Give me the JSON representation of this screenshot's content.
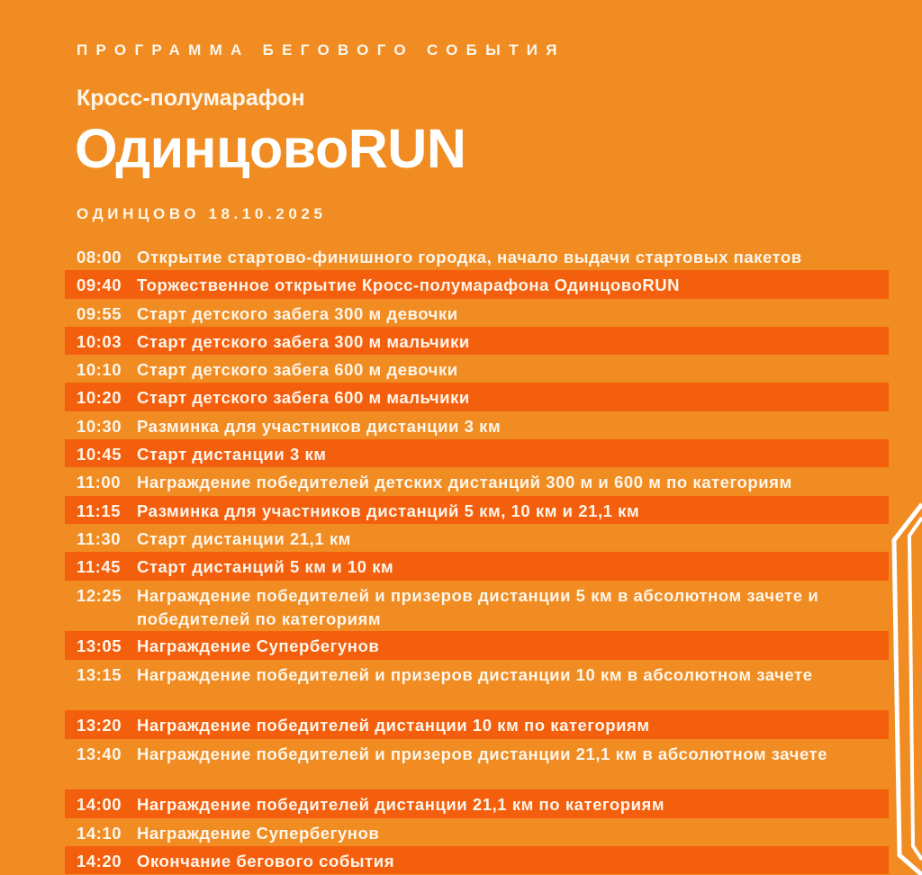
{
  "header": {
    "kicker": "ПРОГРАММА БЕГОВОГО СОБЫТИЯ",
    "subtitle": "Кросс-полумарафон",
    "title": "ОдинцовоRUN",
    "place_date": "ОДИНЦОВО 18.10.2025"
  },
  "colors": {
    "background": "#F08C22",
    "stripe": "#F45F0E",
    "text": "#FFF6EA"
  },
  "schedule": [
    {
      "time": "08:00",
      "text": "Открытие стартово-финишного городка, начало выдачи стартовых пакетов"
    },
    {
      "time": "09:40",
      "text": "Торжественное открытие Кросс-полумарафона ОдинцовоRUN"
    },
    {
      "time": "09:55",
      "text": "Старт детского забега 300 м девочки"
    },
    {
      "time": "10:03",
      "text": "Старт детского забега 300 м мальчики"
    },
    {
      "time": "10:10",
      "text": "Старт детского забега 600 м девочки"
    },
    {
      "time": "10:20",
      "text": "Старт детского забега 600 м мальчики"
    },
    {
      "time": "10:30",
      "text": "Разминка для участников дистанции 3 км"
    },
    {
      "time": "10:45",
      "text": "Старт дистанции 3 км"
    },
    {
      "time": "11:00",
      "text": "Награждение победителей детских дистанций 300 м и 600 м по категориям"
    },
    {
      "time": "11:15",
      "text": "Разминка для участников дистанций 5 км, 10 км и 21,1 км"
    },
    {
      "time": "11:30",
      "text": "Старт дистанции 21,1 км"
    },
    {
      "time": "11:45",
      "text": "Старт дистанций 5 км и 10 км"
    },
    {
      "time": "12:25",
      "text": "Награждение победителей и призеров дистанции 5 км в абсолютном зачете и победителей по категориям"
    },
    {
      "time": "13:05",
      "text": "Награждение Супербегунов"
    },
    {
      "time": "13:15",
      "text": "Награждение победителей и призеров дистанции 10 км в абсолютном зачете"
    },
    {
      "time": "13:20",
      "text": "Награждение победителей дистанции 10 км по категориям"
    },
    {
      "time": "13:40",
      "text": "Награждение победителей и призеров дистанции 21,1 км в абсолютном зачете"
    },
    {
      "time": "14:00",
      "text": "Награждение победителей дистанции 21,1 км по категориям"
    },
    {
      "time": "14:10",
      "text": "Награждение Супербегунов"
    },
    {
      "time": "14:20",
      "text": "Окончание бегового события"
    }
  ]
}
